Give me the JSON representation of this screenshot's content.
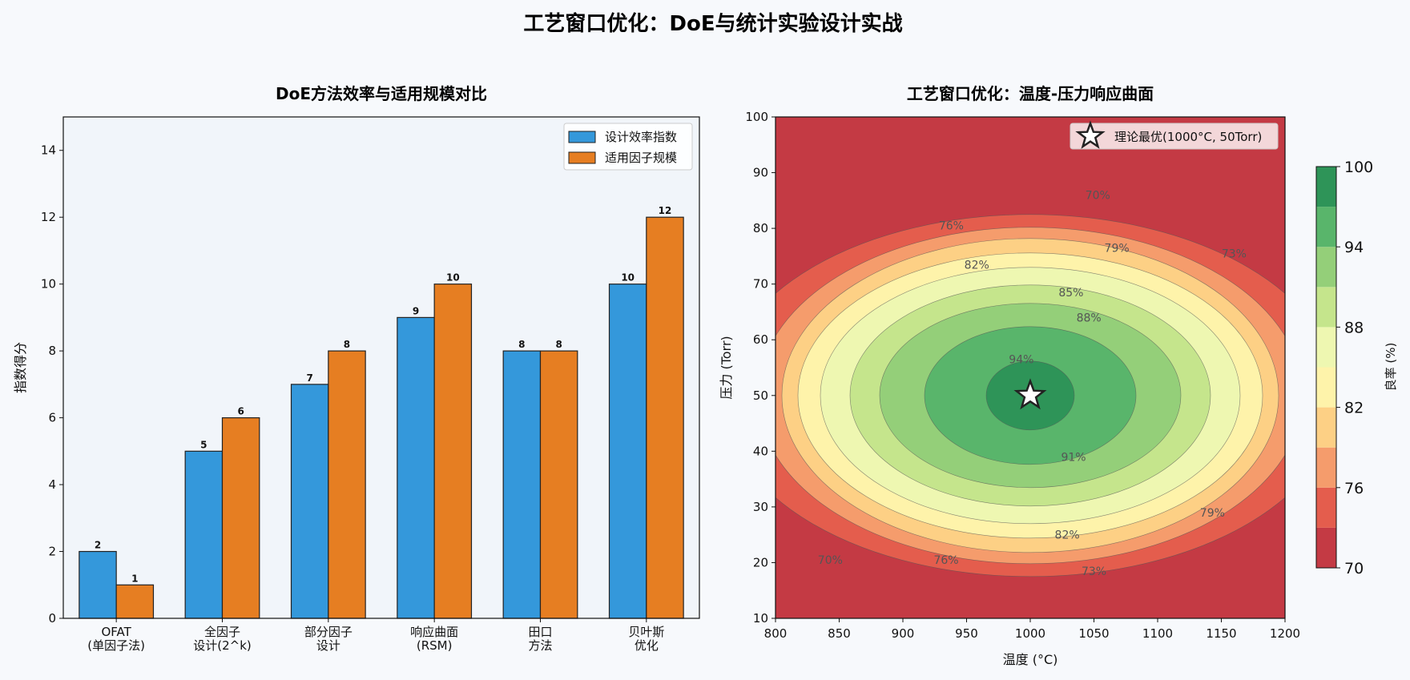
{
  "suptitle": "工艺窗口优化：DoE与统计实验设计实战",
  "chart_data": [
    {
      "type": "bar",
      "title": "DoE方法效率与适用规模对比",
      "ylabel": "指数得分",
      "xlabel": "",
      "ylim": [
        0,
        15
      ],
      "yticks": [
        0,
        2,
        4,
        6,
        8,
        10,
        12,
        14
      ],
      "categories": [
        "OFAT\n(单因子法)",
        "全因子\n设计(2^k)",
        "部分因子\n设计",
        "响应曲面\n(RSM)",
        "田口\n方法",
        "贝叶斯\n优化"
      ],
      "series": [
        {
          "name": "设计效率指数",
          "color": "#3498db",
          "values": [
            2,
            5,
            7,
            9,
            8,
            10
          ]
        },
        {
          "name": "适用因子规模",
          "color": "#e67e22",
          "values": [
            1,
            6,
            8,
            10,
            8,
            12
          ]
        }
      ],
      "legend": "top-right",
      "grid": false
    },
    {
      "type": "heatmap",
      "title": "工艺窗口优化：温度-压力响应曲面",
      "xlabel": "温度 (°C)",
      "ylabel": "压力 (Torr)",
      "xlim": [
        800,
        1200
      ],
      "ylim": [
        10,
        100
      ],
      "xticks": [
        800,
        850,
        900,
        950,
        1000,
        1050,
        1100,
        1150,
        1200
      ],
      "yticks": [
        10,
        20,
        30,
        40,
        50,
        60,
        70,
        80,
        90,
        100
      ],
      "center": {
        "temperature": 1000,
        "pressure": 50,
        "peak_yield": 97
      },
      "contour_levels": [
        70,
        73,
        76,
        79,
        82,
        85,
        88,
        91,
        94,
        97,
        100
      ],
      "contour_labels": [
        {
          "text": "70%",
          "temperature": 1053,
          "pressure": 86
        },
        {
          "text": "76%",
          "temperature": 938,
          "pressure": 80.5
        },
        {
          "text": "79%",
          "temperature": 1068,
          "pressure": 76.5
        },
        {
          "text": "73%",
          "temperature": 1160,
          "pressure": 75.5
        },
        {
          "text": "82%",
          "temperature": 958,
          "pressure": 73.5
        },
        {
          "text": "85%",
          "temperature": 1032,
          "pressure": 68.5
        },
        {
          "text": "88%",
          "temperature": 1046,
          "pressure": 64
        },
        {
          "text": "94%",
          "temperature": 993,
          "pressure": 56.5
        },
        {
          "text": "91%",
          "temperature": 1034,
          "pressure": 39
        },
        {
          "text": "79%",
          "temperature": 1143,
          "pressure": 29
        },
        {
          "text": "82%",
          "temperature": 1029,
          "pressure": 25
        },
        {
          "text": "70%",
          "temperature": 843,
          "pressure": 20.5
        },
        {
          "text": "76%",
          "temperature": 934,
          "pressure": 20.5
        },
        {
          "text": "73%",
          "temperature": 1050,
          "pressure": 18.5
        }
      ],
      "optimum_marker": {
        "label": "理论最优(1000°C, 50Torr)",
        "temperature": 1000,
        "pressure": 50
      },
      "legend": "top-right",
      "colorbar": {
        "label": "良率 (%)",
        "range": [
          70,
          100
        ],
        "ticks": [
          70,
          76,
          82,
          88,
          94,
          100
        ],
        "colors": [
          "#c43a44",
          "#e45d4d",
          "#f59c6c",
          "#fdd085",
          "#fef3aa",
          "#eef7b1",
          "#c5e58c",
          "#94cf79",
          "#59b56b",
          "#2e9458"
        ]
      }
    }
  ]
}
